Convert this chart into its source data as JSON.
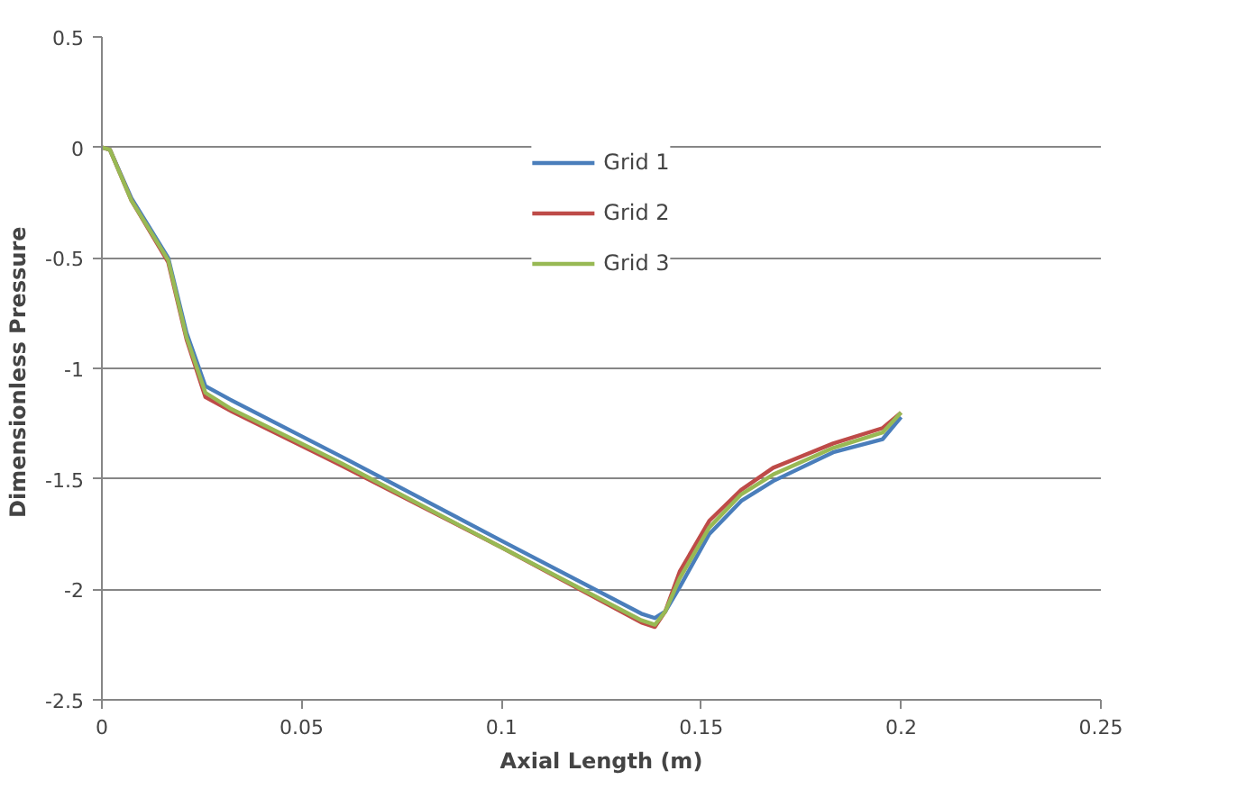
{
  "chart_data": {
    "type": "line",
    "xlabel": "Axial Length (m)",
    "ylabel": "Dimensionless  Pressure",
    "x": [
      0,
      0.002,
      0.0074,
      0.0166,
      0.0212,
      0.0259,
      0.032,
      0.06,
      0.1,
      0.135,
      0.1384,
      0.141,
      0.1446,
      0.152,
      0.16,
      0.168,
      0.183,
      0.1954,
      0.2
    ],
    "series": [
      {
        "name": "Grid 1",
        "color": "#4a7ebb",
        "values": [
          0,
          -0.01,
          -0.23,
          -0.5,
          -0.84,
          -1.08,
          -1.14,
          -1.4,
          -1.78,
          -2.11,
          -2.13,
          -2.1,
          -1.99,
          -1.75,
          -1.6,
          -1.51,
          -1.38,
          -1.32,
          -1.22
        ]
      },
      {
        "name": "Grid 2",
        "color": "#be4b48",
        "values": [
          0,
          -0.01,
          -0.24,
          -0.52,
          -0.87,
          -1.13,
          -1.19,
          -1.44,
          -1.81,
          -2.15,
          -2.17,
          -2.1,
          -1.92,
          -1.69,
          -1.55,
          -1.45,
          -1.34,
          -1.27,
          -1.2
        ]
      },
      {
        "name": "Grid 3",
        "color": "#98b954",
        "values": [
          0,
          -0.01,
          -0.24,
          -0.51,
          -0.86,
          -1.11,
          -1.18,
          -1.43,
          -1.81,
          -2.14,
          -2.16,
          -2.1,
          -1.95,
          -1.72,
          -1.57,
          -1.48,
          -1.36,
          -1.29,
          -1.2
        ]
      }
    ],
    "xlim": [
      0,
      0.25
    ],
    "xticks": [
      0,
      0.05,
      0.1,
      0.15,
      0.2,
      0.25
    ],
    "ylim": [
      -2.5,
      0.5
    ],
    "yticks": [
      -2.5,
      -2,
      -1.5,
      -1,
      -0.5,
      0,
      0.5
    ],
    "grid": "y",
    "legend": "top",
    "marker": "none",
    "line_style": "solid"
  }
}
